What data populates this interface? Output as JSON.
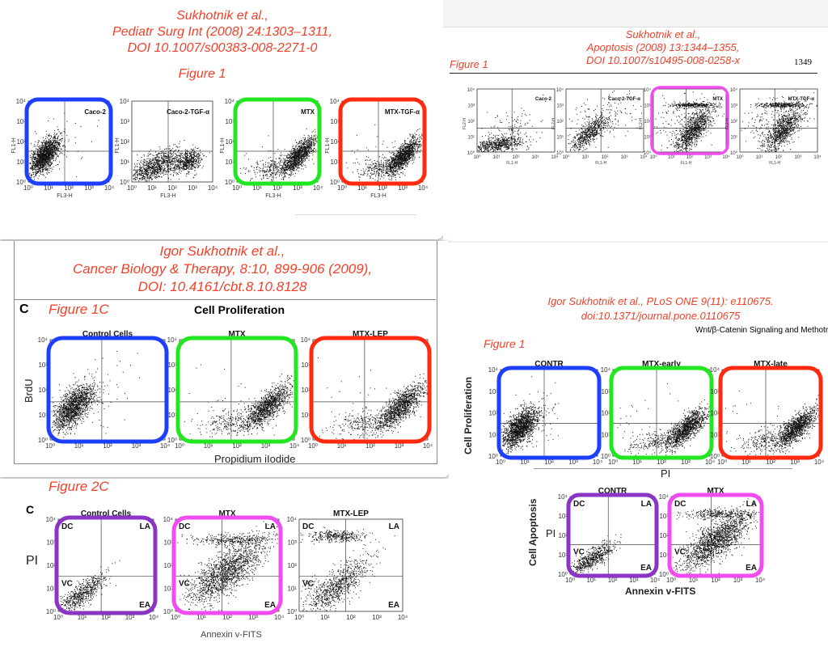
{
  "ticks": [
    "10⁰",
    "10¹",
    "10²",
    "10³",
    "10⁴"
  ],
  "colors": {
    "blue": "#1f3fff",
    "green": "#22e61f",
    "red": "#ff2a10",
    "magenta": "#f04cf0",
    "purple": "#8a35c4",
    "citation": "#f0412a"
  },
  "panel_a": {
    "citation": [
      "Sukhotnik et al.,",
      "Pediatr Surg Int (2008) 24:1303–1311,",
      "DOI 10.1007/s00383-008-2271-0"
    ],
    "figure_label": "Figure 1",
    "plots": [
      {
        "title": "Caco-2",
        "xlabel": "FL3-H",
        "ylabel": "FL1-H",
        "highlight": "#1f3fff"
      },
      {
        "title": "Caco-2-TGF-α",
        "xlabel": "FL3-H",
        "ylabel": "FL1-H",
        "highlight": null
      },
      {
        "title": "MTX",
        "xlabel": "FL3-H",
        "ylabel": "FL1-H",
        "highlight": "#22e61f"
      },
      {
        "title": "MTX-TGF-α",
        "xlabel": "FL3-H",
        "ylabel": "FL1-H",
        "highlight": "#ff2a10"
      }
    ]
  },
  "panel_b": {
    "citation": [
      "Sukhotnik et al.,",
      "Apoptosis (2008) 13:1344–1355,",
      "DOI 10.1007/s10495-008-0258-x"
    ],
    "figure_label": "Figure 1",
    "page_number": "1349",
    "plots": [
      {
        "title": "Caco-2",
        "xlabel": "FL1-H",
        "ylabel": "FL2-H",
        "highlight": null
      },
      {
        "title": "Caco-2-TGF-α",
        "xlabel": "FL1-H",
        "ylabel": "FL2-H",
        "highlight": null
      },
      {
        "title": "MTX",
        "xlabel": "FL1-H",
        "ylabel": "FL2-H",
        "highlight": "#f04cf0"
      },
      {
        "title": "MTX-TGF-α",
        "xlabel": "FL1-H",
        "ylabel": "FL2-H",
        "highlight": null
      }
    ]
  },
  "panel_c": {
    "citation": [
      "Igor Sukhotnik et al.,",
      "Cancer Biology & Therapy, 8:10, 899-906 (2009),",
      "DOI: 10.4161/cbt.8.10.8128"
    ],
    "panel_letter": "C",
    "figure_label": "Figure 1C",
    "heading": "Cell Proliferation",
    "ylabel": "BrdU",
    "xlabel": "Propidium iIodide",
    "plots": [
      {
        "title": "Control Cells",
        "highlight": "#1f3fff"
      },
      {
        "title": "MTX",
        "highlight": "#22e61f"
      },
      {
        "title": "MTX-LEP",
        "highlight": "#ff2a10"
      }
    ]
  },
  "panel_d": {
    "panel_letter": "C",
    "figure_label": "Figure 2C",
    "ylabel": "PI",
    "xlabel": "Annexin v-FITS",
    "quadrants": [
      "DC",
      "LA",
      "VC",
      "EA"
    ],
    "plots": [
      {
        "title": "Control Cells",
        "highlight": "#8a35c4"
      },
      {
        "title": "MTX",
        "highlight": "#f04cf0"
      },
      {
        "title": "MTX-LEP",
        "highlight": null
      }
    ]
  },
  "panel_e": {
    "citation": [
      "Igor Sukhotnik et al., PLoS ONE 9(11): e110675.",
      "doi:10.1371/journal.pone.0110675"
    ],
    "running_head": "Wnt/β-Catenin Signaling and Methotrexa",
    "figure_label": "Figure 1",
    "top_ylabel": "Cell Proliferation",
    "top_xlabel": "PI",
    "top_plots": [
      {
        "title": "CONTR",
        "highlight": "#1f3fff"
      },
      {
        "title": "MTX-early",
        "highlight": "#22e61f"
      },
      {
        "title": "MTX-late",
        "highlight": "#ff2a10"
      }
    ],
    "bottom_ylabel": "Cell Apoptosis",
    "bottom_pi": "PI",
    "bottom_xlabel": "Annexin v-FITS",
    "quadrants": [
      "DC",
      "LA",
      "VC",
      "EA"
    ],
    "bottom_plots": [
      {
        "title": "CONTR",
        "highlight": "#8a35c4"
      },
      {
        "title": "MTX",
        "highlight": "#f04cf0"
      }
    ]
  }
}
